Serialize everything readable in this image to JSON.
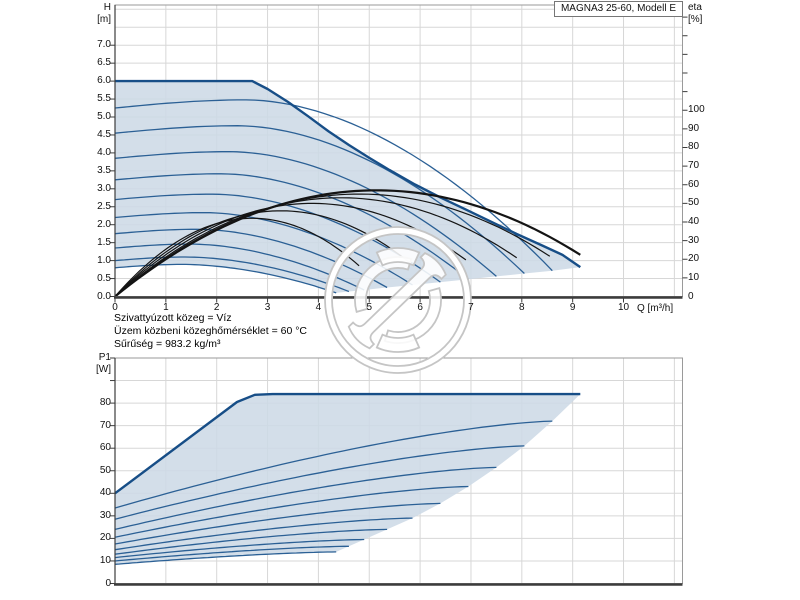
{
  "header": {
    "title": "MAGNA3 25-60, Modell E"
  },
  "info": [
    "Szivattyúzott közeg = Víz",
    "Üzem közbeni közeghőmérséklet = 60 °C",
    "Sűrűség = 983.2 kg/m³"
  ],
  "watermark": {
    "name": "anchor-emblem-watermark"
  },
  "chart_data": [
    {
      "type": "line",
      "role": "head-flow-curves",
      "x_axis": {
        "label": "Q [m³/h]",
        "ticks": [
          "0",
          "1",
          "2",
          "3",
          "4",
          "5",
          "6",
          "7",
          "8",
          "9",
          "10"
        ],
        "range": [
          0,
          11.16
        ]
      },
      "y_axis_left": {
        "label": "H",
        "unit": "[m]",
        "ticks": [
          "0.0",
          "0.5",
          "1.0",
          "1.5",
          "2.0",
          "2.5",
          "3.0",
          "3.5",
          "4.0",
          "4.5",
          "5.0",
          "5.5",
          "6.0",
          "6.5",
          "7.0"
        ],
        "range": [
          0,
          8.12
        ]
      },
      "y_axis_right": {
        "label": "eta",
        "unit": "[%]",
        "ticks": [
          "0",
          "10",
          "20",
          "30",
          "40",
          "50",
          "60",
          "70",
          "80",
          "90",
          "100"
        ],
        "minor_tick_step": 10,
        "minor_tick_max": 150,
        "range": [
          0,
          156.5
        ]
      },
      "grid": true,
      "max_speed_curve": [
        [
          0,
          6.0
        ],
        [
          1,
          6.0
        ],
        [
          2,
          6.0
        ],
        [
          2.7,
          6.0
        ],
        [
          3.0,
          5.78
        ],
        [
          3.4,
          5.42
        ],
        [
          3.8,
          5.02
        ],
        [
          4.2,
          4.6
        ],
        [
          4.6,
          4.22
        ],
        [
          5.0,
          3.86
        ],
        [
          5.4,
          3.52
        ],
        [
          5.9,
          3.12
        ],
        [
          6.4,
          2.76
        ],
        [
          6.9,
          2.42
        ],
        [
          7.4,
          2.08
        ],
        [
          7.9,
          1.74
        ],
        [
          8.4,
          1.42
        ],
        [
          8.8,
          1.16
        ],
        [
          9.15,
          0.82
        ]
      ],
      "speed_curves": [
        {
          "start": 5.25,
          "q_end": 8.6,
          "end": 0.72
        },
        {
          "start": 4.55,
          "q_end": 8.05,
          "end": 0.64
        },
        {
          "start": 3.85,
          "q_end": 7.5,
          "end": 0.56
        },
        {
          "start": 3.25,
          "q_end": 6.95,
          "end": 0.48
        },
        {
          "start": 2.7,
          "q_end": 6.4,
          "end": 0.4
        },
        {
          "start": 2.2,
          "q_end": 5.85,
          "end": 0.32
        },
        {
          "start": 1.75,
          "q_end": 5.35,
          "end": 0.25
        },
        {
          "start": 1.35,
          "q_end": 4.9,
          "end": 0.18
        },
        {
          "start": 1.0,
          "q_end": 4.6,
          "end": 0.14
        },
        {
          "start": 0.8,
          "q_end": 4.35,
          "end": 0.1
        }
      ],
      "eta_curves": [
        {
          "peak": 57,
          "q_end": 9.15
        },
        {
          "peak": 55,
          "q_end": 8.55
        },
        {
          "peak": 53,
          "q_end": 7.9
        },
        {
          "peak": 50,
          "q_end": 6.9
        },
        {
          "peak": 46,
          "q_end": 5.8
        },
        {
          "peak": 42,
          "q_end": 4.8
        }
      ],
      "colors": {
        "field": "#cdd9e6",
        "curve": "#2b6095",
        "max_curve": "#174e87",
        "eta": "#141414",
        "grid": "#d7d7d7",
        "axis": "#3c3c3c",
        "frame": "#9a9a9a"
      }
    },
    {
      "type": "line",
      "role": "power-curves",
      "x_axis": {
        "label": "",
        "ticks": [],
        "range": [
          0,
          11.16
        ]
      },
      "y_axis_left": {
        "label": "P1",
        "unit": "[W]",
        "ticks": [
          "0",
          "10",
          "20",
          "30",
          "40",
          "50",
          "60",
          "70",
          "80"
        ],
        "range": [
          0,
          100
        ]
      },
      "grid": true,
      "max_speed_curve": [
        [
          0,
          40
        ],
        [
          2.4,
          80.5
        ],
        [
          2.75,
          83.7
        ],
        [
          3.1,
          84
        ],
        [
          9.15,
          84
        ]
      ],
      "speed_curves": [
        {
          "start": 33.5,
          "q_end": 8.6,
          "end": 72.0
        },
        {
          "start": 28.5,
          "q_end": 8.05,
          "end": 61.0
        },
        {
          "start": 24.0,
          "q_end": 7.5,
          "end": 51.5
        },
        {
          "start": 20.5,
          "q_end": 6.95,
          "end": 43.0
        },
        {
          "start": 17.5,
          "q_end": 6.4,
          "end": 35.5
        },
        {
          "start": 15.0,
          "q_end": 5.85,
          "end": 29.0
        },
        {
          "start": 13.0,
          "q_end": 5.35,
          "end": 24.0
        },
        {
          "start": 11.5,
          "q_end": 4.9,
          "end": 19.5
        },
        {
          "start": 10.0,
          "q_end": 4.6,
          "end": 16.5
        },
        {
          "start": 8.5,
          "q_end": 4.35,
          "end": 14.0
        }
      ],
      "colors": {
        "field": "#cdd9e6",
        "curve": "#2b6095",
        "max_curve": "#174e87",
        "grid": "#d7d7d7",
        "axis": "#3c3c3c",
        "frame": "#9a9a9a"
      }
    }
  ]
}
